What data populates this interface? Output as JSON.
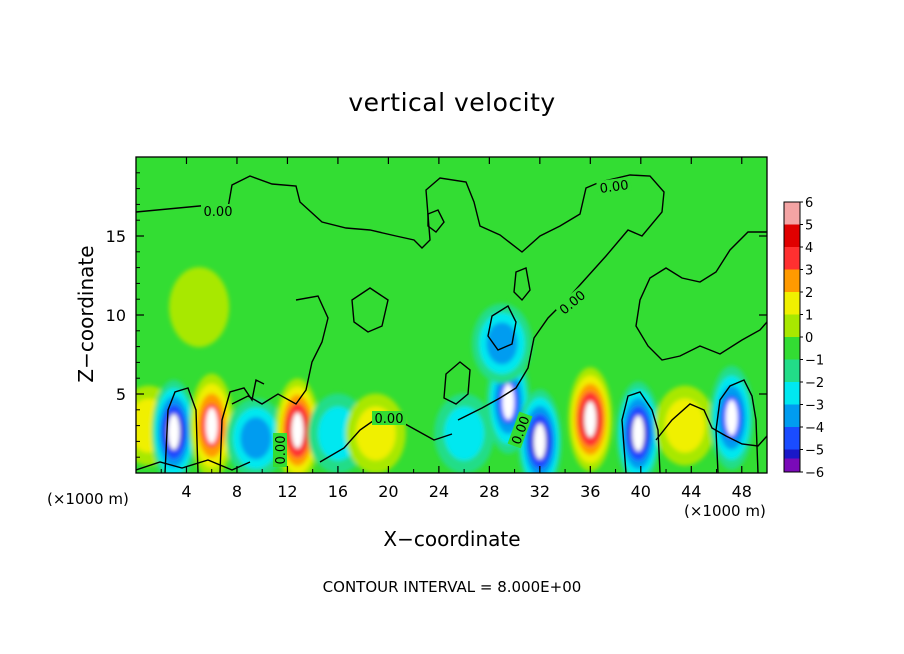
{
  "chart_data": {
    "type": "heatmap",
    "title": "vertical velocity",
    "xlabel": "X−coordinate",
    "ylabel": "Z−coordinate",
    "x_unit_label": "(×1000 m)",
    "y_unit_label": "(×1000 m)",
    "annotation": "CONTOUR INTERVAL = 8.000E+00",
    "xlim": [
      0,
      50
    ],
    "ylim": [
      0,
      20
    ],
    "x_ticks": [
      4,
      8,
      12,
      16,
      20,
      24,
      28,
      32,
      36,
      40,
      44,
      48
    ],
    "y_ticks": [
      5,
      10,
      15
    ],
    "colorbar": {
      "levels": [
        6,
        5,
        4,
        3,
        2,
        1,
        0,
        -1,
        -2,
        -3,
        -4,
        -5,
        -6
      ],
      "labels": [
        "6",
        "5",
        "4",
        "3",
        "2",
        "1",
        "0",
        "−1",
        "−2",
        "−3",
        "−4",
        "−5",
        "−6"
      ],
      "colors": [
        "#f4a4a4",
        "#e00000",
        "#ff3030",
        "#ff9a00",
        "#f0f000",
        "#a8e800",
        "#33dd33",
        "#22dd88",
        "#00e8f0",
        "#009cf0",
        "#1a4cff",
        "#1a18c8",
        "#7a0ab8"
      ]
    },
    "contour_label": "0.00",
    "cells": [
      {
        "x": 1,
        "z": 3,
        "w": 2.1
      },
      {
        "x": 3,
        "z": 2.6,
        "w": -4.5
      },
      {
        "x": 6,
        "z": 3,
        "w": 4.2
      },
      {
        "x": 9.5,
        "z": 2.2,
        "w": -2.5
      },
      {
        "x": 12.8,
        "z": 2.7,
        "w": 4.6
      },
      {
        "x": 16,
        "z": 2.5,
        "w": -1.5
      },
      {
        "x": 19,
        "z": 2.5,
        "w": 1.5
      },
      {
        "x": 26,
        "z": 2.5,
        "w": -2.2
      },
      {
        "x": 29.5,
        "z": 4.5,
        "w": -4.1
      },
      {
        "x": 32,
        "z": 2.0,
        "w": -4.5
      },
      {
        "x": 36,
        "z": 3.4,
        "w": 4.7
      },
      {
        "x": 39.8,
        "z": 2.5,
        "w": -5.0
      },
      {
        "x": 43.5,
        "z": 3.0,
        "w": 2.0
      },
      {
        "x": 47.2,
        "z": 3.5,
        "w": -4.3
      },
      {
        "x": 5,
        "z": 10.5,
        "w": 1.4
      },
      {
        "x": 29,
        "z": 8.2,
        "w": -3.0
      }
    ]
  }
}
